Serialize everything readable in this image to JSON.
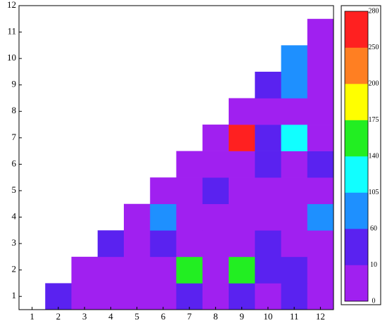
{
  "chart_data": {
    "type": "heatmap",
    "x": [
      1,
      2,
      3,
      4,
      5,
      6,
      7,
      8,
      9,
      10,
      11,
      12
    ],
    "y": [
      1,
      2,
      3,
      4,
      5,
      6,
      7,
      8,
      9,
      10,
      11
    ],
    "z": [
      [
        null,
        35,
        5,
        5,
        5,
        5,
        35,
        5,
        35,
        5,
        35,
        5
      ],
      [
        null,
        null,
        5,
        5,
        5,
        5,
        155,
        5,
        155,
        35,
        35,
        5
      ],
      [
        null,
        null,
        null,
        35,
        5,
        35,
        5,
        5,
        5,
        35,
        5,
        5
      ],
      [
        null,
        null,
        null,
        null,
        5,
        80,
        5,
        5,
        5,
        5,
        5,
        80
      ],
      [
        null,
        null,
        null,
        null,
        null,
        5,
        5,
        35,
        5,
        5,
        5,
        5
      ],
      [
        null,
        null,
        null,
        null,
        null,
        null,
        5,
        5,
        5,
        35,
        5,
        35
      ],
      [
        null,
        null,
        null,
        null,
        null,
        null,
        null,
        5,
        265,
        35,
        120,
        5
      ],
      [
        null,
        null,
        null,
        null,
        null,
        null,
        null,
        null,
        5,
        5,
        5,
        5
      ],
      [
        null,
        null,
        null,
        null,
        null,
        null,
        null,
        null,
        null,
        35,
        80,
        5
      ],
      [
        null,
        null,
        null,
        null,
        null,
        null,
        null,
        null,
        null,
        null,
        80,
        5
      ],
      [
        null,
        null,
        null,
        null,
        null,
        null,
        null,
        null,
        null,
        null,
        null,
        5
      ]
    ],
    "xlim": [
      0.5,
      12.5
    ],
    "ylim": [
      0.5,
      12
    ],
    "xticks": [
      1,
      2,
      3,
      4,
      5,
      6,
      7,
      8,
      9,
      10,
      11,
      12
    ],
    "yticks": [
      1,
      2,
      3,
      4,
      5,
      6,
      7,
      8,
      9,
      10,
      11,
      12
    ],
    "colorbar": {
      "boundaries": [
        0,
        10,
        60,
        105,
        140,
        175,
        200,
        250,
        280
      ],
      "colors": [
        "#a020f0",
        "#5a22f0",
        "#1e90ff",
        "#11ffff",
        "#22ee22",
        "#ffff00",
        "#ff7f22",
        "#ff2020"
      ]
    }
  }
}
